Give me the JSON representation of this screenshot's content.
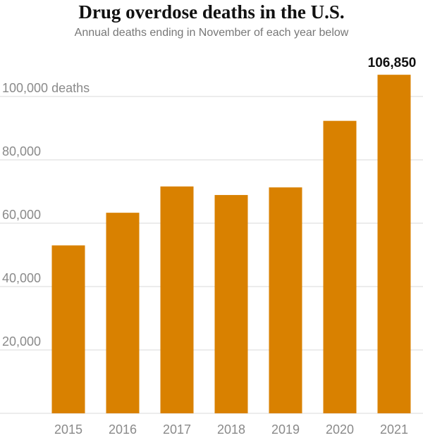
{
  "chart_data": {
    "type": "bar",
    "title": "Drug overdose deaths in the U.S.",
    "subtitle": "Annual deaths ending in November of each year below",
    "categories": [
      "2015",
      "2016",
      "2017",
      "2018",
      "2019",
      "2020",
      "2021"
    ],
    "values": [
      53000,
      63300,
      71600,
      68900,
      71300,
      92300,
      106850
    ],
    "ylim": [
      0,
      110000
    ],
    "yticks": [
      20000,
      40000,
      60000,
      80000,
      100000
    ],
    "ytick_labels": [
      "20,000",
      "40,000",
      "60,000",
      "80,000",
      "100,000 deaths"
    ],
    "data_labels": [
      {
        "category": "2021",
        "text": "106,850"
      }
    ],
    "grid": true,
    "bar_color": "#d98100",
    "xlabel": "",
    "ylabel": ""
  }
}
